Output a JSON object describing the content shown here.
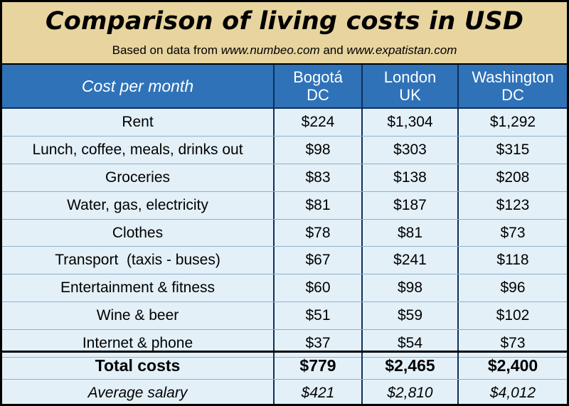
{
  "header": {
    "title": "Comparison of living costs in USD",
    "subtitle_prefix": "Based on data from ",
    "source1": "www.numbeo.com",
    "subtitle_and": " and ",
    "source2": "www.expatistan.com"
  },
  "columns": {
    "label": "Cost per month",
    "cities": [
      {
        "line1": "Bogotá",
        "line2": "DC"
      },
      {
        "line1": "London",
        "line2": "UK"
      },
      {
        "line1": "Washington",
        "line2": "DC"
      }
    ]
  },
  "rows": [
    {
      "label": "Rent",
      "values": [
        "$224",
        "$1,304",
        "$1,292"
      ]
    },
    {
      "label": "Lunch, coffee, meals, drinks out",
      "values": [
        "$98",
        "$303",
        "$315"
      ]
    },
    {
      "label": "Groceries",
      "values": [
        "$83",
        "$138",
        "$208"
      ]
    },
    {
      "label": "Water, gas, electricity",
      "values": [
        "$81",
        "$187",
        "$123"
      ]
    },
    {
      "label": "Clothes",
      "values": [
        "$78",
        "$81",
        "$73"
      ]
    },
    {
      "label": "Transport  (taxis - buses)",
      "values": [
        "$67",
        "$241",
        "$118"
      ]
    },
    {
      "label": "Entertainment & fitness",
      "values": [
        "$60",
        "$98",
        "$96"
      ]
    },
    {
      "label": "Wine & beer",
      "values": [
        "$51",
        "$59",
        "$102"
      ]
    },
    {
      "label": "Internet & phone",
      "values": [
        "$37",
        "$54",
        "$73"
      ]
    }
  ],
  "totals": {
    "label": "Total costs",
    "values": [
      "$779",
      "$2,465",
      "$2,400"
    ]
  },
  "salary": {
    "label": "Average salary",
    "values": [
      "$421",
      "$2,810",
      "$4,012"
    ]
  },
  "colors": {
    "banner": "#e8d49e",
    "header": "#2f72b8",
    "body": "#e3f0f8",
    "grid": "#0f2f5a"
  }
}
